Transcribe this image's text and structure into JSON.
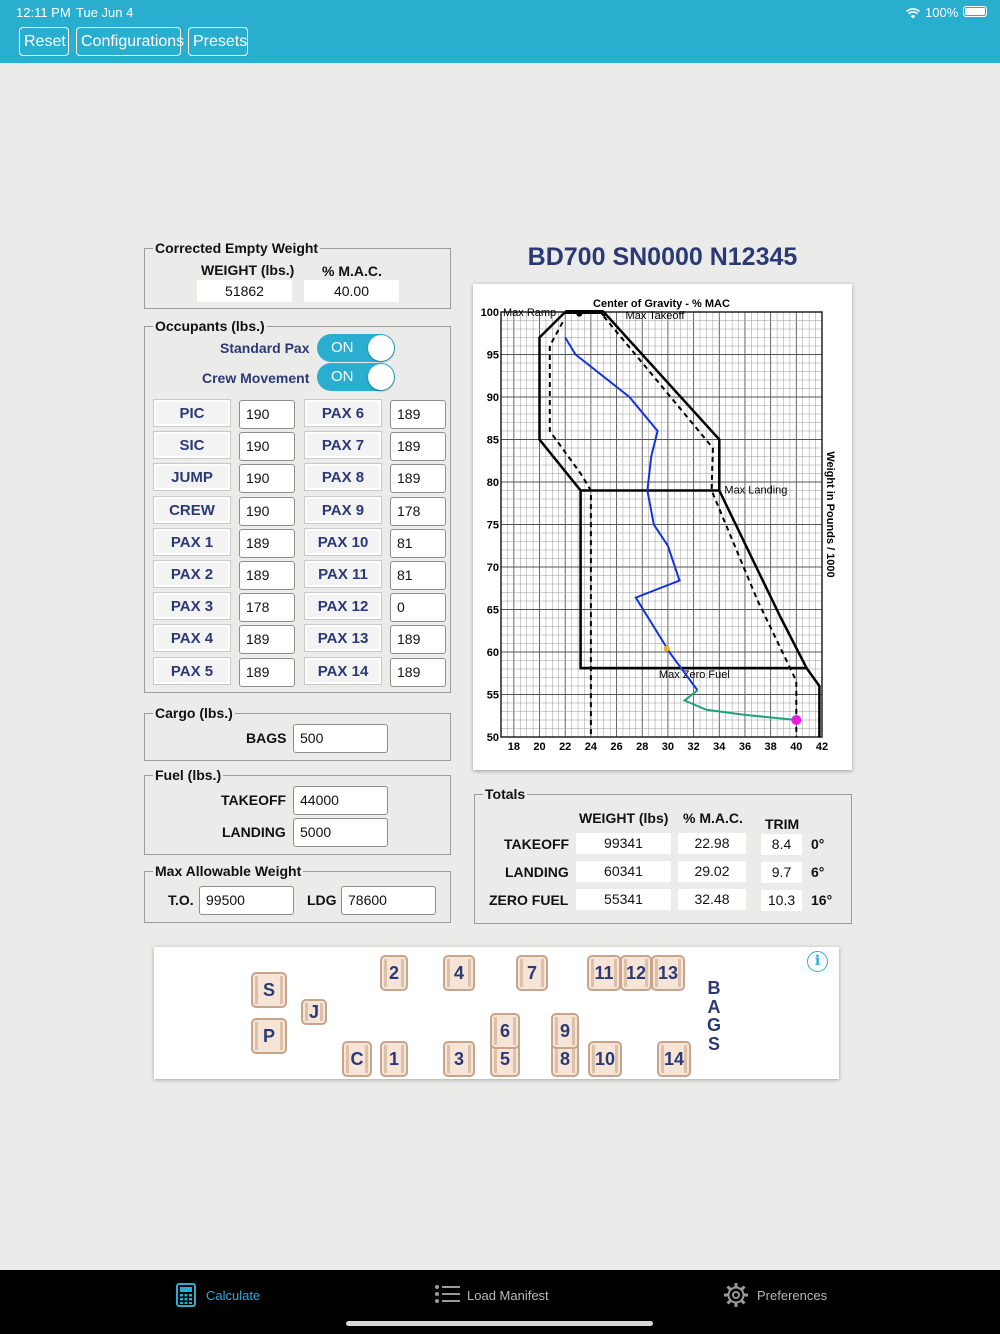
{
  "status": {
    "time": "12:11 PM",
    "date": "Tue Jun 4",
    "battery": "100%"
  },
  "toolbar": {
    "reset": "Reset",
    "configurations": "Configurations",
    "presets": "Presets"
  },
  "cew": {
    "title": "Corrected Empty Weight",
    "weight_header": "WEIGHT (lbs.)",
    "mac_header": "% M.A.C.",
    "weight": "51862",
    "mac": "40.00"
  },
  "occupants": {
    "title": "Occupants (lbs.)",
    "standard_pax_label": "Standard Pax",
    "standard_pax_state": "ON",
    "crew_movement_label": "Crew Movement",
    "crew_movement_state": "ON",
    "left": [
      {
        "label": "PIC",
        "value": "190"
      },
      {
        "label": "SIC",
        "value": "190"
      },
      {
        "label": "JUMP",
        "value": "190"
      },
      {
        "label": "CREW",
        "value": "190"
      },
      {
        "label": "PAX 1",
        "value": "189"
      },
      {
        "label": "PAX 2",
        "value": "189"
      },
      {
        "label": "PAX 3",
        "value": "178"
      },
      {
        "label": "PAX 4",
        "value": "189"
      },
      {
        "label": "PAX 5",
        "value": "189"
      }
    ],
    "right": [
      {
        "label": "PAX 6",
        "value": "189"
      },
      {
        "label": "PAX 7",
        "value": "189"
      },
      {
        "label": "PAX 8",
        "value": "189"
      },
      {
        "label": "PAX 9",
        "value": "178"
      },
      {
        "label": "PAX 10",
        "value": "81"
      },
      {
        "label": "PAX 11",
        "value": "81"
      },
      {
        "label": "PAX 12",
        "value": "0"
      },
      {
        "label": "PAX 13",
        "value": "189"
      },
      {
        "label": "PAX 14",
        "value": "189"
      }
    ]
  },
  "cargo": {
    "title": "Cargo (lbs.)",
    "bags_label": "BAGS",
    "bags": "500"
  },
  "fuel": {
    "title": "Fuel (lbs.)",
    "takeoff_label": "TAKEOFF",
    "takeoff": "44000",
    "landing_label": "LANDING",
    "landing": "5000"
  },
  "max_weight": {
    "title": "Max Allowable Weight",
    "to_label": "T.O.",
    "to": "99500",
    "ldg_label": "LDG",
    "ldg": "78600"
  },
  "aircraft_title": "BD700 SN0000 N12345",
  "totals": {
    "title": "Totals",
    "weight_header": "WEIGHT (lbs)",
    "mac_header": "% M.A.C.",
    "trim_header": "TRIM",
    "rows": [
      {
        "label": "TAKEOFF",
        "weight": "99341",
        "mac": "22.98",
        "trim": "8.4",
        "deg": "0°"
      },
      {
        "label": "LANDING",
        "weight": "60341",
        "mac": "29.02",
        "trim": "9.7",
        "deg": "6°"
      },
      {
        "label": "ZERO FUEL",
        "weight": "55341",
        "mac": "32.48",
        "trim": "10.3",
        "deg": "16°"
      }
    ]
  },
  "chart_data": {
    "type": "line",
    "title": "Center of Gravity - % MAC",
    "ylabel": "Weight in Pounds / 1000",
    "xlim": [
      17,
      42
    ],
    "ylim": [
      50,
      100
    ],
    "x_ticks": [
      "18",
      "20",
      "22",
      "24",
      "26",
      "28",
      "30",
      "32",
      "34",
      "36",
      "38",
      "40",
      "42"
    ],
    "y_ticks": [
      "50",
      "55",
      "60",
      "65",
      "70",
      "75",
      "80",
      "85",
      "90",
      "95",
      "100"
    ],
    "grid": true,
    "annotations": [
      "Max Ramp",
      "Max Takeoff",
      "Max Landing",
      "Max Zero Fuel"
    ],
    "envelope_outer": [
      [
        22,
        100
      ],
      [
        20,
        97
      ],
      [
        20,
        85
      ],
      [
        23.2,
        79
      ],
      [
        23.2,
        58.1
      ],
      [
        40.8,
        58.1
      ],
      [
        41.8,
        56
      ],
      [
        41.8,
        50
      ]
    ],
    "envelope_outer_right": [
      [
        23,
        100
      ],
      [
        25,
        100
      ],
      [
        34,
        85
      ],
      [
        34,
        79
      ],
      [
        38.8,
        64
      ],
      [
        40.8,
        58.1
      ]
    ],
    "envelope_inner": [
      [
        21.8,
        98.8
      ],
      [
        20.8,
        96
      ],
      [
        20.8,
        86
      ],
      [
        23.2,
        81
      ],
      [
        24,
        79
      ],
      [
        24,
        50
      ]
    ],
    "envelope_inner_right": [
      [
        25,
        99.5
      ],
      [
        33.5,
        84
      ],
      [
        33.4,
        79
      ],
      [
        37,
        66
      ],
      [
        40,
        56.6
      ],
      [
        40,
        50
      ]
    ],
    "max_landing_line": 79,
    "max_zero_fuel_line": 58.1,
    "series": [
      {
        "color": "#1432e0",
        "points": [
          [
            22,
            97
          ],
          [
            22.8,
            95
          ],
          [
            27,
            90
          ],
          [
            29.2,
            86
          ],
          [
            28.7,
            83
          ],
          [
            28.4,
            79
          ],
          [
            28.9,
            75
          ],
          [
            30,
            72.5
          ],
          [
            30.9,
            68.4
          ],
          [
            27.5,
            66.4
          ],
          [
            29.3,
            62
          ],
          [
            30.2,
            59.8
          ],
          [
            32.3,
            55.5
          ]
        ]
      },
      {
        "color": "#1fa37d",
        "points": [
          [
            32.3,
            55.5
          ],
          [
            31.3,
            54.3
          ],
          [
            33,
            53.2
          ],
          [
            36,
            52.6
          ],
          [
            40,
            52
          ]
        ]
      }
    ],
    "markers": [
      {
        "color": "#e8b020",
        "point": [
          29.9,
          60.4
        ]
      },
      {
        "color": "#e51edf",
        "point": [
          40,
          52
        ]
      }
    ]
  },
  "seatmap": {
    "info_icon": "info-icon",
    "bags_label": "BAGS",
    "seats": [
      "S",
      "P",
      "J",
      "C",
      "1",
      "2",
      "3",
      "4",
      "5",
      "6",
      "7",
      "8",
      "9",
      "10",
      "11",
      "12",
      "13",
      "14"
    ]
  },
  "tabs": {
    "calculate": "Calculate",
    "load_manifest": "Load Manifest",
    "preferences": "Preferences"
  },
  "colors": {
    "accent": "#2aaed0",
    "navy": "#2b3a74",
    "seat_fill": "#f6e4d6",
    "seat_border": "#c7a58c"
  }
}
